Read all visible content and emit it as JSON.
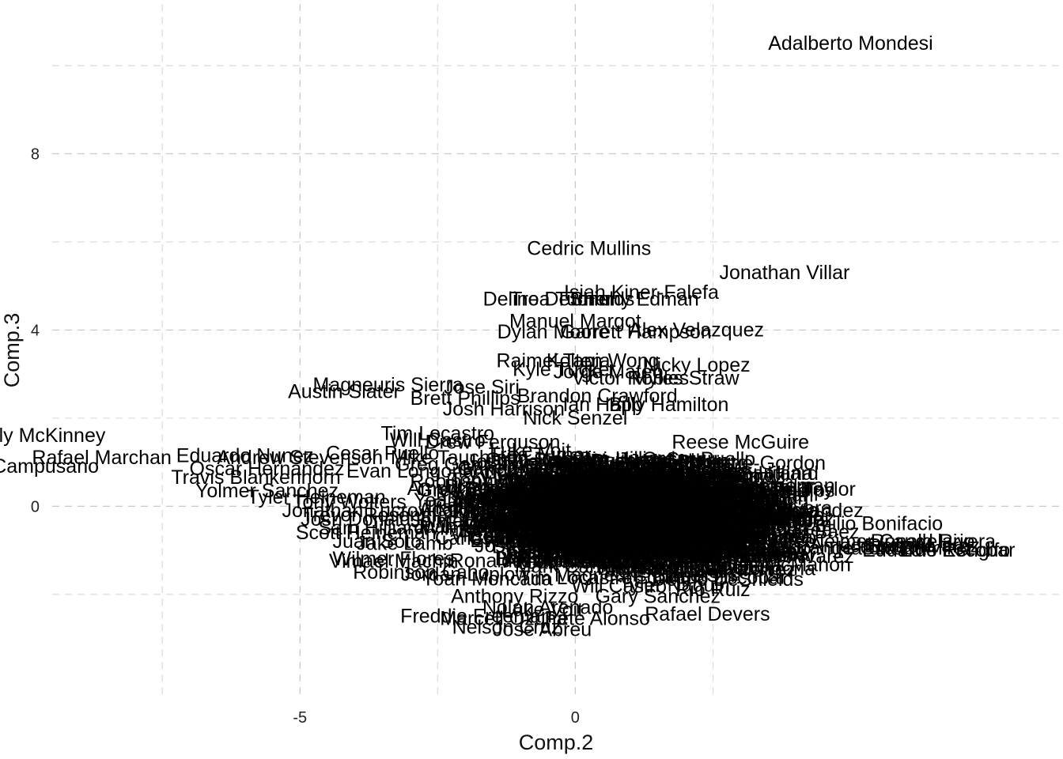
{
  "chart_data": {
    "type": "scatter",
    "marker": "text-label",
    "xlabel": "Comp.2",
    "ylabel": "Comp.3",
    "xlim": [
      -9.5,
      8.8
    ],
    "ylim": [
      -4.3,
      11.4
    ],
    "x_ticks": [
      -5,
      0
    ],
    "y_ticks": [
      0,
      4,
      8
    ],
    "x_minor_grid": [
      -7.5,
      -2.5,
      2.5
    ],
    "y_minor_grid": [
      -2,
      2,
      6,
      10
    ],
    "grid": true,
    "legend": "none",
    "points": [
      {
        "label": "Adalberto Mondesi",
        "x": 5.0,
        "y": 10.5
      },
      {
        "label": "Cedric Mullins",
        "x": 0.25,
        "y": 5.85
      },
      {
        "label": "Jonathan Villar",
        "x": 3.8,
        "y": 5.3
      },
      {
        "label": "Isiah Kiner-Falefa",
        "x": 1.2,
        "y": 4.85
      },
      {
        "label": "Trea Turner",
        "x": -0.25,
        "y": 4.7
      },
      {
        "label": "Delino DeShields",
        "x": -0.3,
        "y": 4.7
      },
      {
        "label": "Tommy Edman",
        "x": 1.05,
        "y": 4.7
      },
      {
        "label": "Manuel Margot",
        "x": 0.0,
        "y": 4.2
      },
      {
        "label": "Dylan Moore",
        "x": -0.4,
        "y": 3.95
      },
      {
        "label": "Garrett Hampson",
        "x": 1.1,
        "y": 3.95
      },
      {
        "label": "Alex Velazquez",
        "x": 2.2,
        "y": 4.0
      },
      {
        "label": "Raimel Tapia",
        "x": -0.4,
        "y": 3.3
      },
      {
        "label": "Kolten Wong",
        "x": 0.5,
        "y": 3.3
      },
      {
        "label": "Nicky Lopez",
        "x": 2.2,
        "y": 3.2
      },
      {
        "label": "Kyle Tucker",
        "x": -0.2,
        "y": 3.1
      },
      {
        "label": "Jorge Mateo",
        "x": 0.6,
        "y": 3.05
      },
      {
        "label": "Victor Robles",
        "x": 1.0,
        "y": 2.9
      },
      {
        "label": "Myles Straw",
        "x": 2.0,
        "y": 2.9
      },
      {
        "label": "Magneuris Sierra",
        "x": -3.4,
        "y": 2.75
      },
      {
        "label": "Jose Siri",
        "x": -1.7,
        "y": 2.7
      },
      {
        "label": "Austin Slater",
        "x": -4.2,
        "y": 2.6
      },
      {
        "label": "Brandon Crawford",
        "x": 0.4,
        "y": 2.5
      },
      {
        "label": "Brett Phillips",
        "x": -2.0,
        "y": 2.45
      },
      {
        "label": "Ian Happ",
        "x": 0.5,
        "y": 2.3
      },
      {
        "label": "Josh Harrison",
        "x": -1.3,
        "y": 2.2
      },
      {
        "label": "Billy Hamilton",
        "x": 1.7,
        "y": 2.3
      },
      {
        "label": "Billy McKinney",
        "x": -9.7,
        "y": 1.6
      },
      {
        "label": "Rafael Marchan",
        "x": -8.6,
        "y": 1.1
      },
      {
        "label": "Eduardo Nunez",
        "x": -6.0,
        "y": 1.15
      },
      {
        "label": "Andrew Stevenson",
        "x": -5.0,
        "y": 1.1
      },
      {
        "label": "Cesar Puello",
        "x": -3.5,
        "y": 1.2
      },
      {
        "label": "Luis Campusano",
        "x": -10.0,
        "y": 0.9
      },
      {
        "label": "Oscar Hernandez",
        "x": -5.6,
        "y": 0.85
      },
      {
        "label": "Travis Blankenhorn",
        "x": -5.8,
        "y": 0.65
      },
      {
        "label": "Yolmer Sanchez",
        "x": -5.6,
        "y": 0.35
      },
      {
        "label": "Tyler Heineman",
        "x": -4.7,
        "y": 0.2
      },
      {
        "label": "Tim Locastro",
        "x": -2.5,
        "y": 1.65
      },
      {
        "label": "Will Castro",
        "x": -2.5,
        "y": 1.5
      },
      {
        "label": "Drew Ferguson",
        "x": -1.5,
        "y": 1.45
      },
      {
        "label": "Nick Senzel",
        "x": 0.0,
        "y": 2.0
      },
      {
        "label": "Reese McGuire",
        "x": 3.0,
        "y": 1.45
      },
      {
        "label": "Mike Tauchman",
        "x": -2.1,
        "y": 1.1
      },
      {
        "label": "Greg Garcia",
        "x": -2.3,
        "y": 0.95
      },
      {
        "label": "Evan Longoria",
        "x": -3.0,
        "y": 0.8
      },
      {
        "label": "Eric Hosmer",
        "x": 0.8,
        "y": 0.9
      },
      {
        "label": "Luis Robert",
        "x": 2.0,
        "y": 1.0
      },
      {
        "label": "Jose Abreu",
        "x": 0.2,
        "y": 0.7
      },
      {
        "label": "Ryan McMahon",
        "x": 1.0,
        "y": 0.55
      },
      {
        "label": "Tony Wolters",
        "x": -4.1,
        "y": 0.1
      },
      {
        "label": "Jonathan Lucroy",
        "x": -4.0,
        "y": -0.1
      },
      {
        "label": "Trevor Rosenthal",
        "x": -3.6,
        "y": -0.2
      },
      {
        "label": "Kurt Suzuki",
        "x": 2.0,
        "y": 0.3
      },
      {
        "label": "Mark Canha",
        "x": 1.2,
        "y": 0.35
      },
      {
        "label": "Carlos Santana",
        "x": 2.8,
        "y": 0.2
      },
      {
        "label": "Alex Bregman",
        "x": 3.2,
        "y": 0.25
      },
      {
        "label": "Michael Taylor",
        "x": 3.5,
        "y": -0.2
      },
      {
        "label": "Josh Donaldson",
        "x": -3.7,
        "y": -0.3
      },
      {
        "label": "Sam Hilliard",
        "x": -3.7,
        "y": -0.5
      },
      {
        "label": "Scott Heineman",
        "x": -3.8,
        "y": -0.6
      },
      {
        "label": "Juan Soto",
        "x": -3.6,
        "y": -0.8
      },
      {
        "label": "Jake Lamb",
        "x": -3.1,
        "y": -0.85
      },
      {
        "label": "Wilmer Flores",
        "x": -3.3,
        "y": -1.2
      },
      {
        "label": "Vimael Machin",
        "x": -3.3,
        "y": -1.25
      },
      {
        "label": "Robinson Cano",
        "x": -2.8,
        "y": -1.5
      },
      {
        "label": "Jordan Luplow",
        "x": -2.0,
        "y": -1.55
      },
      {
        "label": "Yoan Moncada",
        "x": -1.6,
        "y": -1.65
      },
      {
        "label": "Tyler Naquin",
        "x": 1.8,
        "y": -1.8
      },
      {
        "label": "Rio Ruiz",
        "x": 2.5,
        "y": -1.9
      },
      {
        "label": "Kevin Pillar",
        "x": 2.2,
        "y": -0.9
      },
      {
        "label": "Jorge Polanco",
        "x": 2.6,
        "y": -1.05
      },
      {
        "label": "Carlos Correa",
        "x": 3.2,
        "y": -0.7
      },
      {
        "label": "Miguel Rojas",
        "x": 2.9,
        "y": -0.95
      },
      {
        "label": "Jose Rondon",
        "x": 2.2,
        "y": -1.4
      },
      {
        "label": "Javier Baez",
        "x": 3.2,
        "y": -1.0
      },
      {
        "label": "Dee Strange-Gordon",
        "x": 4.7,
        "y": -0.95
      },
      {
        "label": "Amed Rosario",
        "x": 5.4,
        "y": -0.9
      },
      {
        "label": "Jeimer Candelario",
        "x": 5.8,
        "y": -0.8
      },
      {
        "label": "Harold Ramirez",
        "x": 6.0,
        "y": -0.95
      },
      {
        "label": "Eddy Alvarez",
        "x": 6.3,
        "y": -0.9
      },
      {
        "label": "Eduardo Escobar",
        "x": 6.6,
        "y": -1.0
      },
      {
        "label": "Luis Rengifo",
        "x": 6.9,
        "y": -1.0
      },
      {
        "label": "Emilio Bonifacio",
        "x": 5.4,
        "y": -0.4
      },
      {
        "label": "Ronald Rivera",
        "x": 6.5,
        "y": -0.8
      },
      {
        "label": "Anthony Rizzo",
        "x": -1.1,
        "y": -2.05
      },
      {
        "label": "Luke Voit",
        "x": -0.6,
        "y": -2.35
      },
      {
        "label": "Nolan Arenado",
        "x": -0.5,
        "y": -2.3
      },
      {
        "label": "Gary Sanchez",
        "x": 1.5,
        "y": -2.05
      },
      {
        "label": "Freddie Freeman",
        "x": -1.8,
        "y": -2.5
      },
      {
        "label": "Marcell Ozuna",
        "x": -1.3,
        "y": -2.55
      },
      {
        "label": "Pete Alonso",
        "x": 0.4,
        "y": -2.55
      },
      {
        "label": "Rafael Devers",
        "x": 2.4,
        "y": -2.45
      },
      {
        "label": "Nelson Cruz",
        "x": -1.25,
        "y": -2.75
      },
      {
        "label": "Jose Abreu",
        "x": -0.6,
        "y": -2.8
      }
    ]
  }
}
